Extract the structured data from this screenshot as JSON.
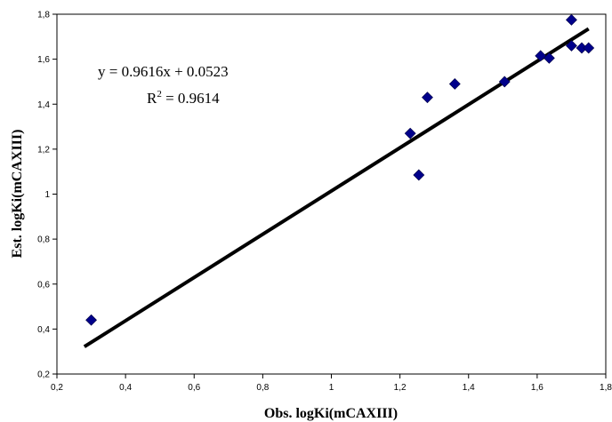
{
  "chart_data": {
    "type": "scatter",
    "xlabel": "Obs. logKi(mCAXIII)",
    "ylabel": "Est.  logKi(mCAXIII)",
    "xlim": [
      0.2,
      1.8
    ],
    "ylim": [
      0.2,
      1.8
    ],
    "x_ticks": [
      "0,2",
      "0,4",
      "0,6",
      "0,8",
      "1",
      "1,2",
      "1,4",
      "1,6",
      "1,8"
    ],
    "y_ticks": [
      "0,2",
      "0,4",
      "0,6",
      "0,8",
      "1",
      "1,2",
      "1,4",
      "1,6",
      "1,8"
    ],
    "grid": false,
    "points": [
      {
        "x": 0.3,
        "y": 0.44
      },
      {
        "x": 1.23,
        "y": 1.27
      },
      {
        "x": 1.255,
        "y": 1.085
      },
      {
        "x": 1.28,
        "y": 1.43
      },
      {
        "x": 1.36,
        "y": 1.49
      },
      {
        "x": 1.505,
        "y": 1.5
      },
      {
        "x": 1.61,
        "y": 1.615
      },
      {
        "x": 1.635,
        "y": 1.605
      },
      {
        "x": 1.7,
        "y": 1.775
      },
      {
        "x": 1.7,
        "y": 1.66
      },
      {
        "x": 1.73,
        "y": 1.65
      },
      {
        "x": 1.75,
        "y": 1.65
      }
    ],
    "trendline": {
      "slope": 0.9616,
      "intercept": 0.0523,
      "x_range": [
        0.28,
        1.75
      ],
      "equation_text": "y = 0.9616x + 0.0523",
      "r2_label": "R",
      "r2_sup": "2",
      "r2_value_text": " = 0.9614"
    },
    "marker_color": "#00008B",
    "line_color": "#000000"
  }
}
